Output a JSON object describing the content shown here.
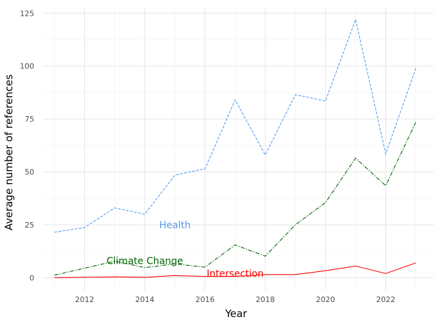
{
  "chart_data": {
    "type": "line",
    "title": "",
    "xlabel": "Year",
    "ylabel": "Average number of references",
    "xlim": [
      2010.6,
      2023.6
    ],
    "ylim": [
      -6,
      128
    ],
    "xticks": [
      2012,
      2014,
      2016,
      2018,
      2020,
      2022
    ],
    "yticks": [
      0,
      25,
      50,
      75,
      100,
      125
    ],
    "grid": true,
    "legend": "none",
    "x": [
      2011,
      2012,
      2013,
      2014,
      2015,
      2016,
      2017,
      2018,
      2019,
      2020,
      2021,
      2022,
      2023
    ],
    "series": [
      {
        "name": "Health",
        "color": "#5b9bef",
        "dash": "dashed",
        "label_pos": [
          2015,
          25
        ],
        "values": [
          21.5,
          23.7,
          33,
          30,
          48.5,
          51.5,
          84,
          58,
          86.5,
          83.5,
          122,
          58.5,
          99
        ]
      },
      {
        "name": "Climate Change",
        "color": "#006400",
        "dash": "dashdot",
        "label_pos": [
          2014,
          8
        ],
        "values": [
          1.2,
          4.5,
          7.8,
          4.8,
          6.5,
          5,
          15.5,
          10.2,
          25,
          35.5,
          56.5,
          43.5,
          73.5
        ]
      },
      {
        "name": "Intersection",
        "color": "#ff0000",
        "dash": "solid",
        "label_pos": [
          2017,
          2
        ],
        "values": [
          0,
          0.2,
          0.4,
          0.2,
          1,
          0.6,
          0.6,
          1.5,
          1.5,
          3.3,
          5.5,
          2,
          7
        ]
      }
    ]
  }
}
